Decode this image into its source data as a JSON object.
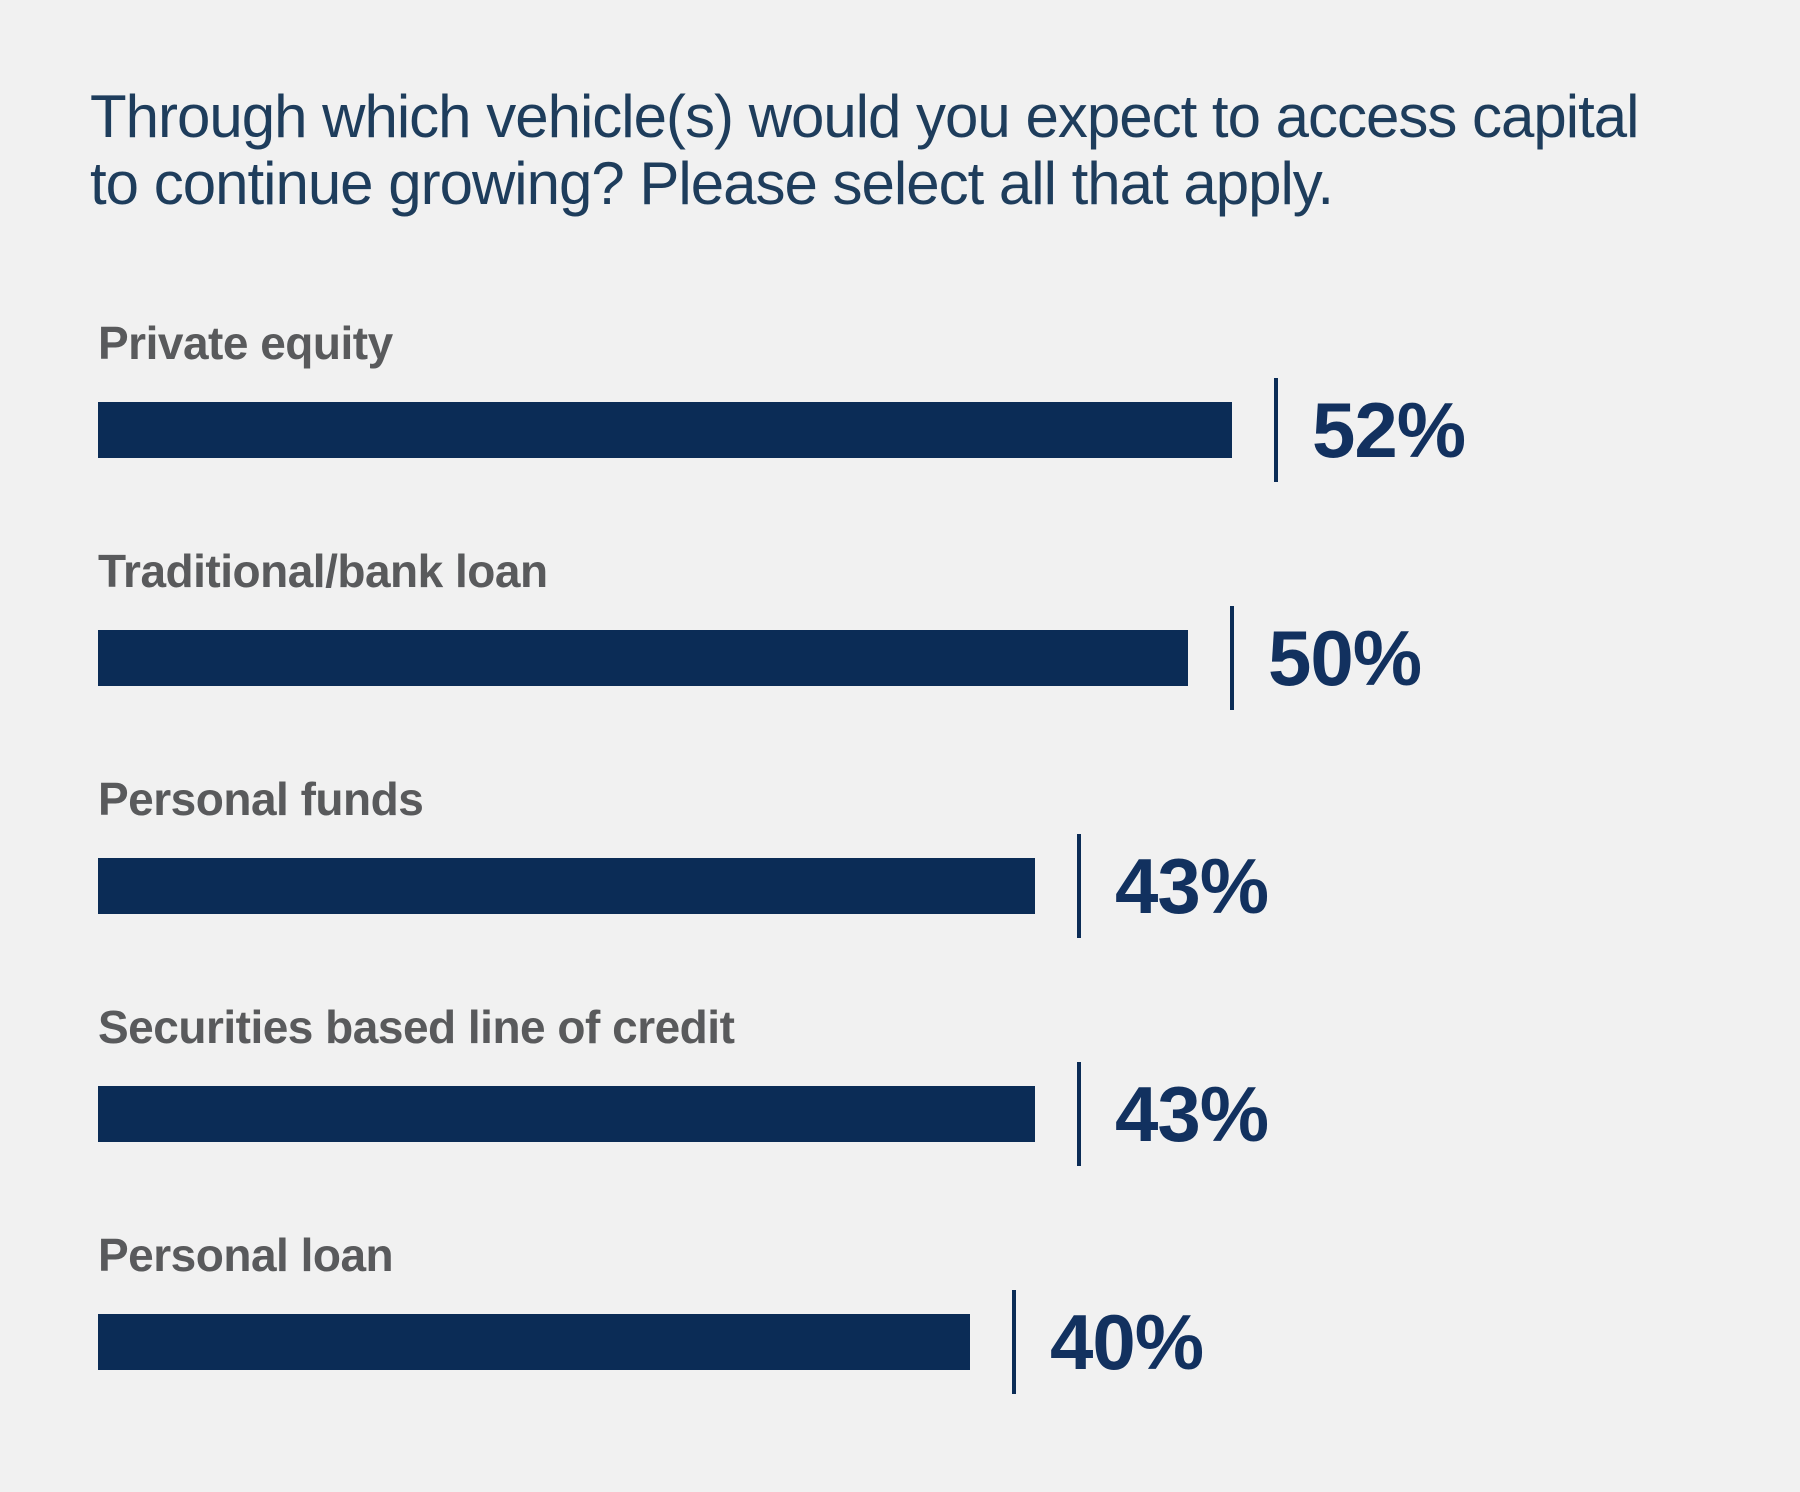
{
  "page": {
    "background_color": "#f1f1f1"
  },
  "title": {
    "text": "Through which vehicle(s) would you expect to access capital to continue growing? Please select all that apply.",
    "lines": [
      "Through which vehicle(s) would you expect to access capital",
      "to continue growing? Please select all that apply."
    ],
    "color": "#1e3d5c"
  },
  "chart_data": {
    "type": "bar",
    "orientation": "horizontal",
    "title": "Through which vehicle(s) would you expect to access capital to continue growing? Please select all that apply.",
    "categories": [
      "Private equity",
      "Traditional/bank loan",
      "Personal funds",
      "Securities based line of credit",
      "Personal loan"
    ],
    "values": [
      52,
      50,
      43,
      43,
      40
    ],
    "value_labels": [
      "52%",
      "50%",
      "43%",
      "43%",
      "40%"
    ],
    "rows": [
      {
        "label": "Private equity",
        "value": 52,
        "value_label": "52%"
      },
      {
        "label": "Traditional/bank loan",
        "value": 50,
        "value_label": "50%"
      },
      {
        "label": "Personal funds",
        "value": 43,
        "value_label": "43%"
      },
      {
        "label": "Securities based line of credit",
        "value": 43,
        "value_label": "43%"
      },
      {
        "label": "Personal loan",
        "value": 40,
        "value_label": "40%"
      }
    ],
    "xlim": [
      0,
      100
    ],
    "grid": false,
    "legend": false,
    "value_label_position": "right-of-bar-after-tick",
    "pixels_per_percent": 21.8,
    "bar_color": "#0b2c56",
    "tick_color": "#0b2c56",
    "category_label_color": "#595a5c",
    "value_label_color": "#12315f"
  }
}
